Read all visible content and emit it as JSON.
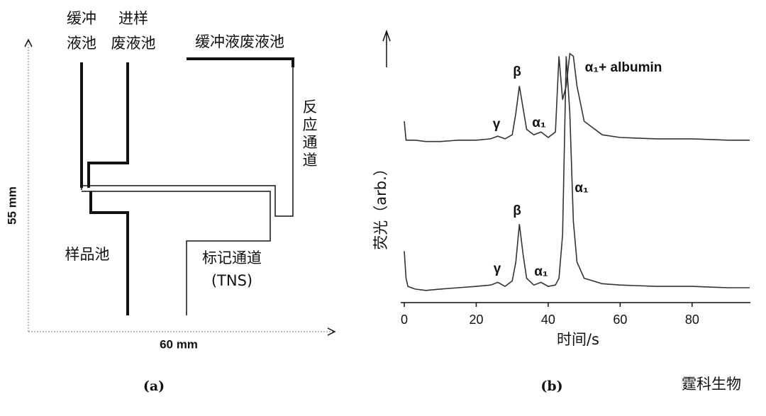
{
  "panel_a": {
    "buffer_reservoir": [
      "缓冲",
      "液池"
    ],
    "sample_waste": [
      "进样",
      "废液池"
    ],
    "buffer_waste": "缓冲液废液池",
    "reaction_channel": [
      "反",
      "应",
      "通",
      "道"
    ],
    "sample_reservoir": "样品池",
    "label_channel": [
      "标记通道",
      "(TNS)"
    ],
    "height": "55 mm",
    "width": "60 mm",
    "caption": "(a)"
  },
  "chart_data": {
    "type": "line",
    "caption": "(b)",
    "x_label": "时间/s",
    "y_label": "荧光（arb.）",
    "annotations": [
      "γ",
      "β",
      "α₁",
      "α₁+ albumin",
      "β",
      "γ",
      "α₁",
      "α₁"
    ],
    "x": [
      0,
      0.5,
      1,
      3,
      6,
      10,
      15,
      20,
      24,
      26,
      28,
      30,
      31,
      32,
      33,
      34,
      36,
      38,
      40,
      42,
      43,
      44,
      45,
      46,
      47,
      48,
      50,
      55,
      60,
      70,
      80,
      90,
      96
    ],
    "series": [
      {
        "name": "upper",
        "color": "#333333",
        "values": [
          67,
          60,
          60,
          60,
          59.5,
          59.5,
          60,
          60,
          60.5,
          61.5,
          60.5,
          62,
          70,
          80,
          72,
          64,
          62,
          63,
          61,
          63,
          91,
          75,
          80,
          92,
          91,
          80,
          67,
          62,
          61,
          60.5,
          60.5,
          60,
          60
        ]
      },
      {
        "name": "lower",
        "color": "#333333",
        "values": [
          19,
          9,
          6,
          5,
          4.5,
          5,
          5.5,
          6,
          6.5,
          7.5,
          6,
          8,
          15,
          29,
          18,
          9,
          6.5,
          7.5,
          6,
          6.5,
          9,
          25,
          91,
          70,
          30,
          15,
          9,
          7,
          6.5,
          6,
          6,
          5.5,
          5.5
        ]
      }
    ],
    "xlim": [
      0,
      96
    ],
    "xticks": [
      0,
      20,
      40,
      60,
      80
    ],
    "ylim": [
      0,
      100
    ]
  },
  "watermark": "霆科生物"
}
